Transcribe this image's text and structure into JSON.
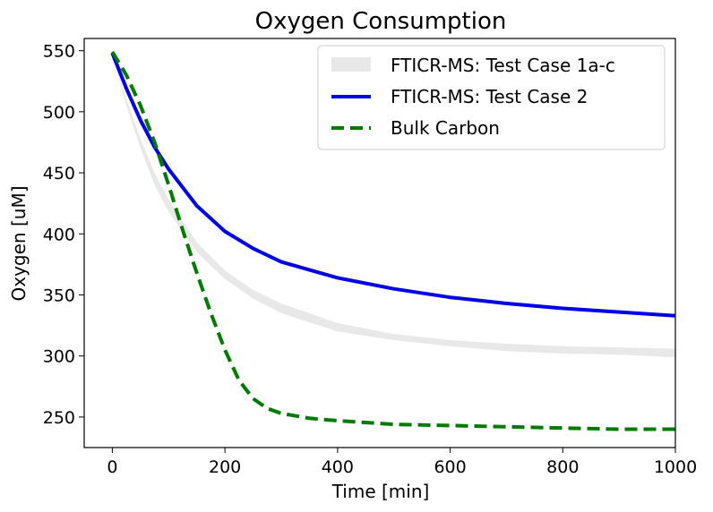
{
  "chart_data": {
    "type": "line",
    "title": "Oxygen Consumption",
    "xlabel": "Time [min]",
    "ylabel": "Oxygen [uM]",
    "xlim": [
      -50,
      1000
    ],
    "ylim": [
      225,
      560
    ],
    "xticks": [
      0,
      200,
      400,
      600,
      800,
      1000
    ],
    "yticks": [
      250,
      300,
      350,
      400,
      450,
      500,
      550
    ],
    "legend_position": "top-right",
    "grid": false,
    "series": [
      {
        "name": "FTICR-MS: Test Case 1a-c",
        "style": "band",
        "color": "#d9d9d9",
        "x": [
          0,
          25,
          50,
          75,
          100,
          150,
          200,
          250,
          300,
          400,
          500,
          600,
          700,
          800,
          900,
          1000
        ],
        "lower": [
          548,
          505,
          470,
          440,
          418,
          385,
          363,
          347,
          335,
          320,
          313,
          308,
          304,
          302,
          301,
          299
        ],
        "upper": [
          549,
          510,
          478,
          450,
          428,
          393,
          370,
          354,
          343,
          327,
          318,
          313,
          310,
          308,
          307,
          306
        ]
      },
      {
        "name": "FTICR-MS: Test Case 2",
        "style": "solid",
        "color": "#0000e6",
        "x": [
          0,
          25,
          50,
          75,
          100,
          150,
          200,
          250,
          300,
          400,
          500,
          600,
          700,
          800,
          900,
          1000
        ],
        "values": [
          548,
          519,
          493,
          471,
          453,
          423,
          402,
          388,
          377,
          364,
          355,
          348,
          343,
          339,
          336,
          333
        ]
      },
      {
        "name": "Bulk Carbon",
        "style": "dashed",
        "color": "#007a00",
        "x": [
          0,
          25,
          50,
          75,
          100,
          125,
          150,
          175,
          200,
          225,
          250,
          275,
          300,
          350,
          400,
          500,
          600,
          700,
          800,
          900,
          1000
        ],
        "values": [
          549,
          530,
          505,
          475,
          440,
          403,
          368,
          335,
          305,
          280,
          265,
          257,
          253,
          249,
          247,
          244,
          243,
          242,
          241,
          240,
          240
        ]
      }
    ]
  }
}
